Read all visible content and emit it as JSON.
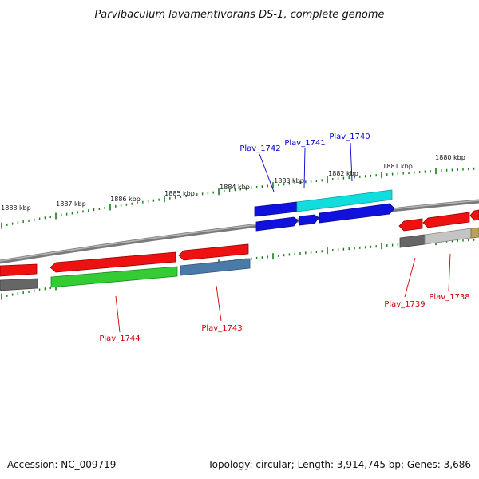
{
  "title": "Parvibaculum lavamentivorans DS-1, complete genome",
  "footer": {
    "accession": "Accession: NC_009719",
    "summary": "Topology: circular; Length: 3,914,745 bp; Genes: 3,686"
  },
  "colors": {
    "background": "#ffffff",
    "tick": "#1a7a1a",
    "backbone": "#888888",
    "label_forward": "#0000cc",
    "label_reverse": "#cc0000",
    "gene_red": "#ee1111",
    "gene_green": "#33cc33",
    "gene_blue": "#1111dd",
    "gene_cyan": "#11dddd",
    "gene_steel": "#4a7aa8",
    "gene_darkgray": "#666666",
    "gene_lightgray": "#bbbbbb",
    "gene_khaki": "#b7a25a"
  },
  "kbp_labels": [
    "1888 kbp",
    "1887 kbp",
    "1886 kbp",
    "1885 kbp",
    "1884 kbp",
    "1883 kbp",
    "1882 kbp",
    "1881 kbp",
    "1880 kbp"
  ],
  "gene_labels": {
    "forward": [
      "Plav_1742",
      "Plav_1741",
      "Plav_1740"
    ],
    "reverse": [
      "Plav_1744",
      "Plav_1743",
      "Plav_1739",
      "Plav_1738"
    ]
  }
}
